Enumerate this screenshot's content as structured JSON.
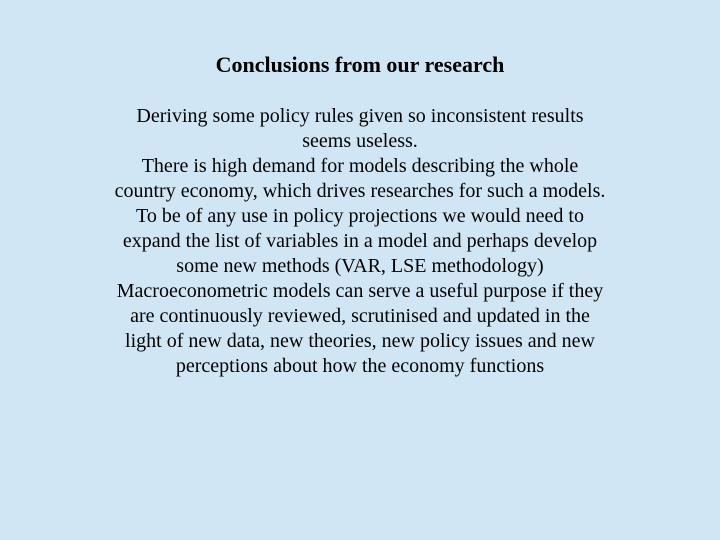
{
  "slide": {
    "background_color": "#d1e6f5",
    "text_color": "#000000",
    "font_family": "Times New Roman",
    "title": {
      "text": "Conclusions from our research",
      "font_size": 22,
      "font_weight": "bold"
    },
    "body": {
      "font_size": 20,
      "paragraphs": [
        "Deriving some policy rules given so inconsistent results seems useless.",
        "There is high demand for models describing the whole country economy, which drives researches for such a models.",
        "To be of any use in policy projections we would need to expand the list of variables in a model and perhaps develop some new methods (VAR, LSE methodology)",
        "Macroeconometric models can serve a useful purpose if they are continuously reviewed, scrutinised and updated in the light of new data, new theories, new policy issues and new perceptions about how the economy functions"
      ]
    }
  }
}
